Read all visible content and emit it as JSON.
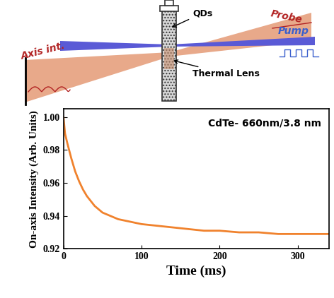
{
  "chart_data": {
    "type": "line",
    "annotations": [
      "CdTe- 660nm/3.8 nm"
    ],
    "x_label": "Time (ms)",
    "y_label": "On-axis Intensity (Arb. Units)",
    "color": "#f0822d",
    "x": [
      0,
      2,
      5,
      10,
      15,
      20,
      25,
      30,
      40,
      50,
      60,
      70,
      80,
      90,
      100,
      120,
      140,
      160,
      180,
      200,
      225,
      250,
      275,
      300,
      320,
      340
    ],
    "values": [
      1.0,
      0.99,
      0.984,
      0.975,
      0.967,
      0.961,
      0.956,
      0.952,
      0.946,
      0.942,
      0.94,
      0.938,
      0.937,
      0.936,
      0.935,
      0.934,
      0.933,
      0.932,
      0.931,
      0.931,
      0.93,
      0.93,
      0.929,
      0.929,
      0.929,
      0.929
    ],
    "xlim": [
      0,
      340
    ],
    "xticks": [
      0,
      100,
      200,
      300
    ],
    "ylim": [
      0.92,
      1.005
    ],
    "yticks": [
      {
        "value": 0.92,
        "label": "0.92"
      },
      {
        "value": 0.94,
        "label": "0.94"
      },
      {
        "value": 0.96,
        "label": "0.96"
      },
      {
        "value": 0.98,
        "label": "0.98"
      },
      {
        "value": 1.0,
        "label": "1.00"
      }
    ],
    "grid": false
  },
  "diagram": {
    "labels": {
      "sample": "QDs",
      "probe": "Probe",
      "pump": "Pump",
      "detector": "Axis int.",
      "lens": "Thermal Lens"
    }
  }
}
